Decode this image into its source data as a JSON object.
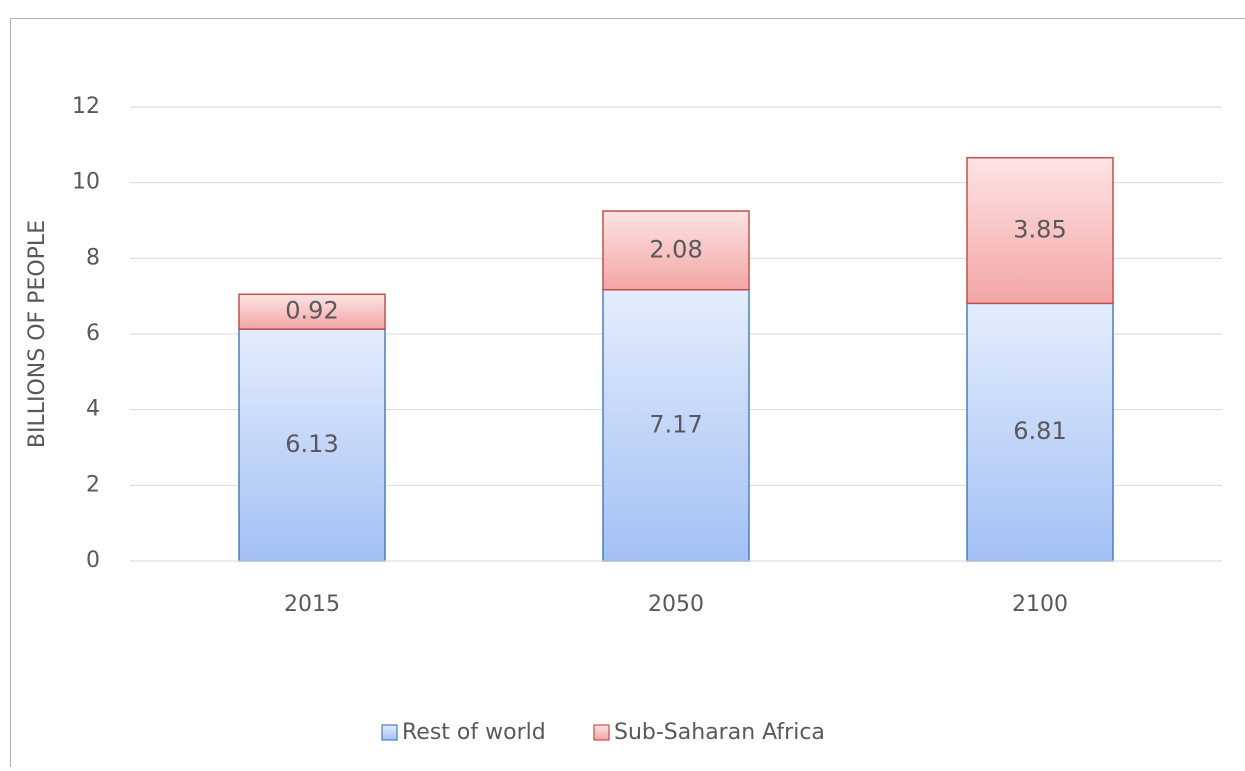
{
  "chart_data": {
    "type": "stacked_bar",
    "y_label": "BILLIONS OF PEOPLE",
    "categories": [
      "2015",
      "2050",
      "2100"
    ],
    "series": [
      {
        "name": "Rest of world",
        "color": "#4a7ebb",
        "values": [
          6.13,
          7.17,
          6.81
        ]
      },
      {
        "name": "Sub-Saharan Africa",
        "color": "#c0504d",
        "values": [
          0.92,
          2.08,
          3.85
        ]
      }
    ],
    "ylim": [
      0,
      12
    ],
    "yticks": [
      0,
      2,
      4,
      6,
      8,
      10,
      12
    ],
    "grid": true,
    "legend": "bottom"
  }
}
